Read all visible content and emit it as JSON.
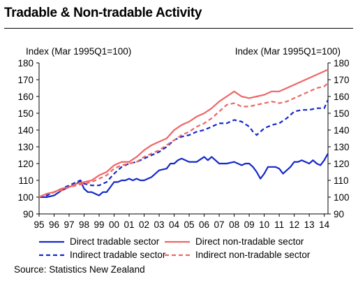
{
  "title": "Tradable & Non-tradable Activity",
  "source": "Source: Statistics New Zealand",
  "colors": {
    "tradable": "#1428c8",
    "nontradable": "#ee6666"
  },
  "chart_data": {
    "type": "line",
    "title": "Tradable & Non-tradable Activity",
    "ylabel_left": "Index (Mar 1995Q1=100)",
    "ylabel_right": "Index (Mar 1995Q1=100)",
    "ylim": [
      90,
      180
    ],
    "yticks": [
      90,
      100,
      110,
      120,
      130,
      140,
      150,
      160,
      170,
      180
    ],
    "xlim": [
      1995.0,
      2014.25
    ],
    "xticks": [
      "95",
      "96",
      "97",
      "98",
      "99",
      "00",
      "01",
      "02",
      "03",
      "04",
      "05",
      "06",
      "07",
      "08",
      "09",
      "10",
      "11",
      "12",
      "13",
      "14"
    ],
    "grid": false,
    "legend_position": "bottom",
    "series": [
      {
        "name": "Direct tradable sector",
        "style": "solid",
        "color": "#1428c8",
        "points": [
          [
            1995.0,
            100
          ],
          [
            1995.5,
            100
          ],
          [
            1996.0,
            101
          ],
          [
            1996.5,
            104
          ],
          [
            1997.0,
            106
          ],
          [
            1997.5,
            108
          ],
          [
            1997.75,
            110
          ],
          [
            1998.0,
            105
          ],
          [
            1998.25,
            103
          ],
          [
            1998.5,
            103
          ],
          [
            1998.75,
            102
          ],
          [
            1999.0,
            101
          ],
          [
            1999.25,
            103
          ],
          [
            1999.5,
            103
          ],
          [
            1999.75,
            106
          ],
          [
            2000.0,
            109
          ],
          [
            2000.25,
            109
          ],
          [
            2000.5,
            110
          ],
          [
            2000.75,
            110
          ],
          [
            2001.0,
            111
          ],
          [
            2001.25,
            110
          ],
          [
            2001.5,
            111
          ],
          [
            2001.75,
            110
          ],
          [
            2002.0,
            110
          ],
          [
            2002.5,
            112
          ],
          [
            2003.0,
            116
          ],
          [
            2003.5,
            117
          ],
          [
            2003.75,
            120
          ],
          [
            2004.0,
            120
          ],
          [
            2004.25,
            122
          ],
          [
            2004.5,
            123
          ],
          [
            2004.75,
            122
          ],
          [
            2005.0,
            121
          ],
          [
            2005.5,
            121
          ],
          [
            2006.0,
            124
          ],
          [
            2006.25,
            122
          ],
          [
            2006.5,
            124
          ],
          [
            2006.75,
            122
          ],
          [
            2007.0,
            120
          ],
          [
            2007.5,
            120
          ],
          [
            2008.0,
            121
          ],
          [
            2008.25,
            120
          ],
          [
            2008.5,
            119
          ],
          [
            2008.75,
            120
          ],
          [
            2009.0,
            120
          ],
          [
            2009.25,
            118
          ],
          [
            2009.5,
            115
          ],
          [
            2009.75,
            111
          ],
          [
            2010.0,
            114
          ],
          [
            2010.25,
            118
          ],
          [
            2010.5,
            118
          ],
          [
            2010.75,
            118
          ],
          [
            2011.0,
            117
          ],
          [
            2011.25,
            114
          ],
          [
            2011.5,
            116
          ],
          [
            2011.75,
            118
          ],
          [
            2012.0,
            121
          ],
          [
            2012.25,
            121
          ],
          [
            2012.5,
            122
          ],
          [
            2012.75,
            121
          ],
          [
            2013.0,
            120
          ],
          [
            2013.25,
            122
          ],
          [
            2013.5,
            120
          ],
          [
            2013.75,
            119
          ],
          [
            2014.0,
            122
          ],
          [
            2014.25,
            126
          ]
        ]
      },
      {
        "name": "Indirect tradable sector",
        "style": "dashed",
        "color": "#1428c8",
        "points": [
          [
            1995.0,
            100
          ],
          [
            1995.5,
            101
          ],
          [
            1996.0,
            103
          ],
          [
            1996.5,
            105
          ],
          [
            1997.0,
            107
          ],
          [
            1997.5,
            109
          ],
          [
            1997.75,
            110
          ],
          [
            1998.0,
            108
          ],
          [
            1998.5,
            107
          ],
          [
            1999.0,
            107
          ],
          [
            1999.5,
            109
          ],
          [
            2000.0,
            114
          ],
          [
            2000.5,
            118
          ],
          [
            2001.0,
            120
          ],
          [
            2001.5,
            121
          ],
          [
            2002.0,
            123
          ],
          [
            2002.5,
            125
          ],
          [
            2003.0,
            127
          ],
          [
            2003.5,
            130
          ],
          [
            2004.0,
            134
          ],
          [
            2004.5,
            136
          ],
          [
            2005.0,
            137
          ],
          [
            2005.5,
            139
          ],
          [
            2006.0,
            140
          ],
          [
            2006.5,
            142
          ],
          [
            2007.0,
            144
          ],
          [
            2007.5,
            144
          ],
          [
            2008.0,
            146
          ],
          [
            2008.5,
            145
          ],
          [
            2009.0,
            142
          ],
          [
            2009.25,
            139
          ],
          [
            2009.5,
            137
          ],
          [
            2010.0,
            141
          ],
          [
            2010.5,
            143
          ],
          [
            2011.0,
            144
          ],
          [
            2011.5,
            147
          ],
          [
            2012.0,
            151
          ],
          [
            2012.5,
            152
          ],
          [
            2013.0,
            152
          ],
          [
            2013.5,
            153
          ],
          [
            2014.0,
            153
          ],
          [
            2014.25,
            158
          ]
        ]
      },
      {
        "name": "Direct non-tradable sector",
        "style": "solid",
        "color": "#ee6666",
        "points": [
          [
            1995.0,
            100
          ],
          [
            1995.5,
            102
          ],
          [
            1996.0,
            103
          ],
          [
            1996.5,
            105
          ],
          [
            1997.0,
            106
          ],
          [
            1997.5,
            108
          ],
          [
            1998.0,
            109
          ],
          [
            1998.5,
            110
          ],
          [
            1999.0,
            113
          ],
          [
            1999.5,
            115
          ],
          [
            2000.0,
            119
          ],
          [
            2000.5,
            121
          ],
          [
            2001.0,
            121
          ],
          [
            2001.5,
            124
          ],
          [
            2002.0,
            128
          ],
          [
            2002.5,
            131
          ],
          [
            2003.0,
            133
          ],
          [
            2003.5,
            135
          ],
          [
            2004.0,
            140
          ],
          [
            2004.5,
            143
          ],
          [
            2005.0,
            145
          ],
          [
            2005.5,
            148
          ],
          [
            2006.0,
            150
          ],
          [
            2006.5,
            153
          ],
          [
            2007.0,
            157
          ],
          [
            2007.5,
            160
          ],
          [
            2008.0,
            163
          ],
          [
            2008.5,
            160
          ],
          [
            2009.0,
            159
          ],
          [
            2009.5,
            160
          ],
          [
            2010.0,
            161
          ],
          [
            2010.5,
            163
          ],
          [
            2011.0,
            163
          ],
          [
            2011.5,
            165
          ],
          [
            2012.0,
            167
          ],
          [
            2012.5,
            169
          ],
          [
            2013.0,
            171
          ],
          [
            2013.5,
            173
          ],
          [
            2014.0,
            175
          ],
          [
            2014.25,
            176
          ]
        ]
      },
      {
        "name": "Indirect non-tradable sector",
        "style": "dashed",
        "color": "#ee6666",
        "points": [
          [
            1995.0,
            100
          ],
          [
            1995.5,
            102
          ],
          [
            1996.0,
            103
          ],
          [
            1996.5,
            104
          ],
          [
            1997.0,
            106
          ],
          [
            1997.5,
            107
          ],
          [
            1998.0,
            108
          ],
          [
            1998.5,
            109
          ],
          [
            1999.0,
            111
          ],
          [
            1999.5,
            113
          ],
          [
            2000.0,
            117
          ],
          [
            2000.5,
            119
          ],
          [
            2001.0,
            120
          ],
          [
            2001.5,
            121
          ],
          [
            2002.0,
            124
          ],
          [
            2002.5,
            126
          ],
          [
            2003.0,
            128
          ],
          [
            2003.5,
            131
          ],
          [
            2004.0,
            134
          ],
          [
            2004.5,
            137
          ],
          [
            2005.0,
            139
          ],
          [
            2005.5,
            142
          ],
          [
            2006.0,
            144
          ],
          [
            2006.5,
            147
          ],
          [
            2007.0,
            151
          ],
          [
            2007.5,
            155
          ],
          [
            2008.0,
            156
          ],
          [
            2008.5,
            154
          ],
          [
            2009.0,
            154
          ],
          [
            2009.5,
            155
          ],
          [
            2010.0,
            156
          ],
          [
            2010.5,
            157
          ],
          [
            2011.0,
            156
          ],
          [
            2011.5,
            157
          ],
          [
            2012.0,
            159
          ],
          [
            2012.5,
            161
          ],
          [
            2013.0,
            163
          ],
          [
            2013.5,
            165
          ],
          [
            2014.0,
            166
          ],
          [
            2014.25,
            168
          ]
        ]
      }
    ]
  }
}
